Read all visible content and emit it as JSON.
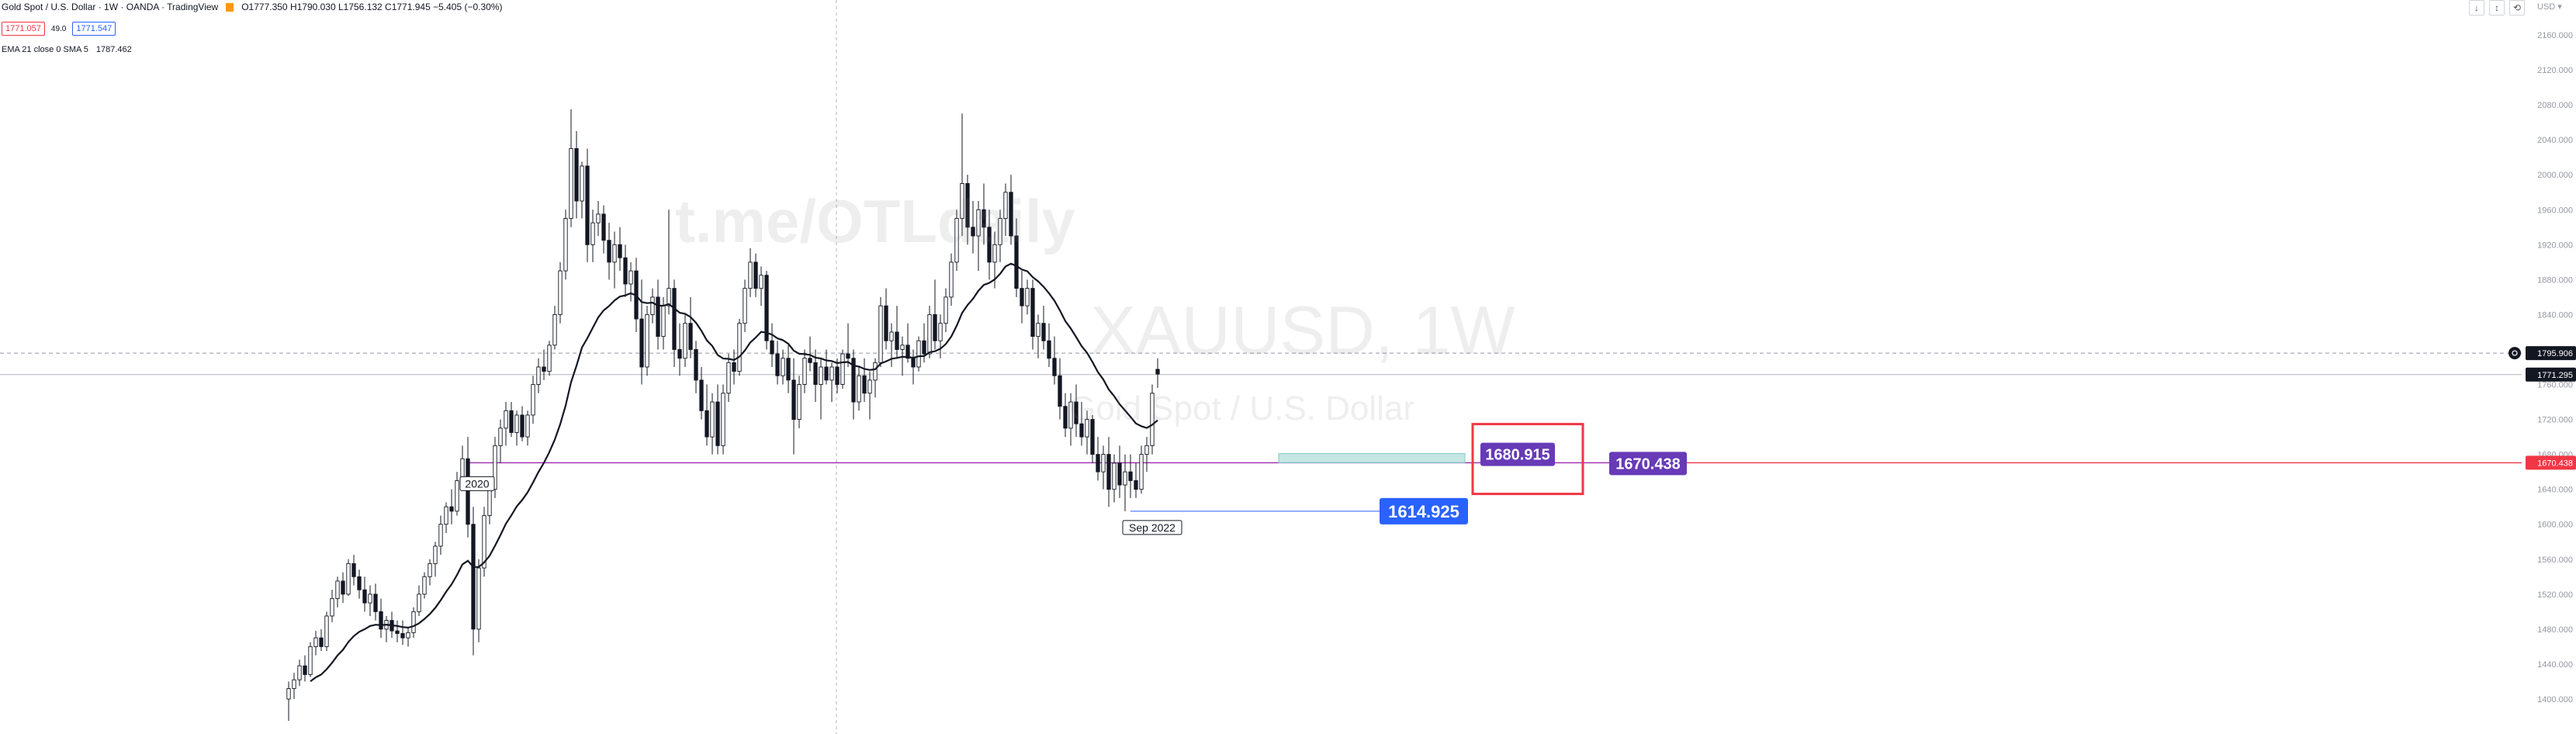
{
  "header": {
    "symbol": "Gold Spot / U.S. Dollar · 1W · OANDA · TradingView",
    "ohlc": "O1777.350  H1790.030  L1756.132  C1771.945  −5.405 (−0.30%)",
    "sell_price": "1771.057",
    "spread": "49.0",
    "buy_price": "1771.547",
    "indicator": "EMA 21 close 0 SMA 5",
    "indicator_value": "1787.462"
  },
  "watermark": {
    "line1": "t.me/OTLdaily",
    "line2": "XAUUSD, 1W",
    "line3": "Gold Spot / U.S. Dollar"
  },
  "currency_label": "USD ▾",
  "window_controls": [
    "↓",
    "↕",
    "⟲"
  ],
  "chart_data": {
    "type": "candlestick",
    "symbol": "XAUUSD",
    "timeframe": "1W",
    "y_axis": {
      "min": 1360,
      "max": 2200,
      "ticks": [
        2160,
        2120,
        2080,
        2040,
        2000,
        1960,
        1920,
        1880,
        1840,
        1800,
        1760,
        1720,
        1680,
        1640,
        1600,
        1560,
        1520,
        1480,
        1440,
        1400
      ],
      "tick_format": "000"
    },
    "price_tags": [
      {
        "label": "1795.906",
        "value": 1795.906,
        "color": "#131722"
      },
      {
        "label": "1771.295",
        "value": 1771.295,
        "color": "#131722"
      },
      {
        "label": "1670.438",
        "value": 1670.438,
        "color": "#f23645"
      }
    ],
    "horizontal_lines": [
      {
        "value": 1795.906,
        "style": "dashed",
        "color": "#9598a1"
      },
      {
        "value": 1771.295,
        "style": "solid",
        "color": "#b2b5be"
      },
      {
        "value": 1670.438,
        "style": "solid",
        "color": "#f23645"
      },
      {
        "value": 1670.438,
        "style": "solid",
        "color": "#9c27b0"
      }
    ],
    "annotations": [
      {
        "label": "2020",
        "style": "outline",
        "value": 1670.438
      },
      {
        "label": "Sep 2022",
        "style": "outline",
        "value": 1614.925
      },
      {
        "label": "1680.915",
        "style": "purple",
        "value": 1680.915
      },
      {
        "label": "1670.438",
        "style": "purple",
        "value": 1670.438
      },
      {
        "label": "1614.925",
        "style": "blue",
        "value": 1614.925
      }
    ],
    "zone": {
      "from": 1670.438,
      "to": 1680.915,
      "color": "#b2dfdb"
    },
    "ema_period": 21,
    "ema_value": 1787.462,
    "candles": [
      [
        1400,
        1420,
        1375,
        1412
      ],
      [
        1412,
        1430,
        1400,
        1422
      ],
      [
        1422,
        1445,
        1415,
        1438
      ],
      [
        1438,
        1450,
        1420,
        1428
      ],
      [
        1428,
        1465,
        1425,
        1460
      ],
      [
        1460,
        1478,
        1450,
        1470
      ],
      [
        1470,
        1480,
        1455,
        1460
      ],
      [
        1460,
        1500,
        1455,
        1495
      ],
      [
        1495,
        1525,
        1488,
        1515
      ],
      [
        1515,
        1540,
        1505,
        1535
      ],
      [
        1535,
        1545,
        1510,
        1520
      ],
      [
        1520,
        1560,
        1518,
        1555
      ],
      [
        1555,
        1565,
        1530,
        1540
      ],
      [
        1540,
        1548,
        1515,
        1525
      ],
      [
        1525,
        1540,
        1500,
        1510
      ],
      [
        1510,
        1530,
        1495,
        1520
      ],
      [
        1520,
        1532,
        1490,
        1500
      ],
      [
        1500,
        1515,
        1470,
        1480
      ],
      [
        1480,
        1495,
        1465,
        1490
      ],
      [
        1490,
        1500,
        1470,
        1478
      ],
      [
        1478,
        1490,
        1465,
        1475
      ],
      [
        1475,
        1490,
        1462,
        1470
      ],
      [
        1470,
        1482,
        1460,
        1476
      ],
      [
        1476,
        1505,
        1470,
        1500
      ],
      [
        1500,
        1530,
        1495,
        1520
      ],
      [
        1520,
        1545,
        1515,
        1540
      ],
      [
        1540,
        1560,
        1530,
        1555
      ],
      [
        1555,
        1580,
        1540,
        1575
      ],
      [
        1575,
        1610,
        1565,
        1600
      ],
      [
        1600,
        1625,
        1590,
        1620
      ],
      [
        1620,
        1640,
        1600,
        1615
      ],
      [
        1615,
        1660,
        1610,
        1650
      ],
      [
        1650,
        1690,
        1640,
        1675
      ],
      [
        1675,
        1700,
        1585,
        1600
      ],
      [
        1600,
        1620,
        1450,
        1480
      ],
      [
        1480,
        1560,
        1465,
        1550
      ],
      [
        1550,
        1620,
        1540,
        1610
      ],
      [
        1610,
        1650,
        1600,
        1640
      ],
      [
        1640,
        1700,
        1630,
        1690
      ],
      [
        1690,
        1720,
        1670,
        1710
      ],
      [
        1710,
        1740,
        1690,
        1730
      ],
      [
        1730,
        1740,
        1700,
        1705
      ],
      [
        1705,
        1730,
        1690,
        1725
      ],
      [
        1725,
        1735,
        1695,
        1700
      ],
      [
        1700,
        1730,
        1690,
        1725
      ],
      [
        1725,
        1770,
        1715,
        1760
      ],
      [
        1760,
        1790,
        1750,
        1780
      ],
      [
        1780,
        1800,
        1765,
        1775
      ],
      [
        1775,
        1810,
        1770,
        1805
      ],
      [
        1805,
        1850,
        1800,
        1840
      ],
      [
        1840,
        1900,
        1830,
        1890
      ],
      [
        1890,
        1960,
        1880,
        1950
      ],
      [
        1950,
        2075,
        1940,
        2030
      ],
      [
        2030,
        2050,
        1950,
        1970
      ],
      [
        1970,
        2015,
        1950,
        2010
      ],
      [
        2010,
        2030,
        1900,
        1920
      ],
      [
        1920,
        1960,
        1900,
        1945
      ],
      [
        1945,
        1970,
        1930,
        1955
      ],
      [
        1955,
        1965,
        1910,
        1925
      ],
      [
        1925,
        1945,
        1880,
        1900
      ],
      [
        1900,
        1935,
        1870,
        1920
      ],
      [
        1920,
        1940,
        1890,
        1905
      ],
      [
        1905,
        1920,
        1860,
        1875
      ],
      [
        1875,
        1900,
        1855,
        1890
      ],
      [
        1890,
        1905,
        1820,
        1835
      ],
      [
        1835,
        1880,
        1760,
        1780
      ],
      [
        1780,
        1850,
        1770,
        1840
      ],
      [
        1840,
        1870,
        1830,
        1860
      ],
      [
        1860,
        1880,
        1800,
        1815
      ],
      [
        1815,
        1860,
        1800,
        1850
      ],
      [
        1850,
        1960,
        1840,
        1870
      ],
      [
        1870,
        1880,
        1780,
        1800
      ],
      [
        1800,
        1830,
        1770,
        1790
      ],
      [
        1790,
        1840,
        1780,
        1830
      ],
      [
        1830,
        1860,
        1790,
        1800
      ],
      [
        1800,
        1810,
        1750,
        1765
      ],
      [
        1765,
        1780,
        1720,
        1730
      ],
      [
        1730,
        1760,
        1690,
        1700
      ],
      [
        1700,
        1750,
        1680,
        1740
      ],
      [
        1740,
        1760,
        1680,
        1690
      ],
      [
        1690,
        1760,
        1680,
        1750
      ],
      [
        1750,
        1795,
        1740,
        1785
      ],
      [
        1785,
        1800,
        1760,
        1775
      ],
      [
        1775,
        1835,
        1770,
        1830
      ],
      [
        1830,
        1880,
        1820,
        1870
      ],
      [
        1870,
        1916,
        1860,
        1900
      ],
      [
        1900,
        1910,
        1860,
        1870
      ],
      [
        1870,
        1895,
        1850,
        1885
      ],
      [
        1885,
        1890,
        1800,
        1810
      ],
      [
        1810,
        1830,
        1780,
        1795
      ],
      [
        1795,
        1810,
        1760,
        1770
      ],
      [
        1770,
        1800,
        1760,
        1790
      ],
      [
        1790,
        1805,
        1750,
        1765
      ],
      [
        1765,
        1790,
        1680,
        1720
      ],
      [
        1720,
        1770,
        1710,
        1760
      ],
      [
        1760,
        1800,
        1750,
        1790
      ],
      [
        1790,
        1815,
        1775,
        1785
      ],
      [
        1785,
        1800,
        1740,
        1760
      ],
      [
        1760,
        1790,
        1720,
        1780
      ],
      [
        1780,
        1800,
        1760,
        1765
      ],
      [
        1765,
        1785,
        1740,
        1780
      ],
      [
        1780,
        1790,
        1750,
        1760
      ],
      [
        1760,
        1800,
        1755,
        1795
      ],
      [
        1795,
        1830,
        1780,
        1790
      ],
      [
        1790,
        1800,
        1720,
        1740
      ],
      [
        1740,
        1780,
        1730,
        1770
      ],
      [
        1770,
        1790,
        1740,
        1750
      ],
      [
        1750,
        1775,
        1720,
        1765
      ],
      [
        1765,
        1790,
        1745,
        1785
      ],
      [
        1785,
        1860,
        1780,
        1850
      ],
      [
        1850,
        1870,
        1800,
        1810
      ],
      [
        1810,
        1830,
        1780,
        1820
      ],
      [
        1820,
        1850,
        1790,
        1800
      ],
      [
        1800,
        1815,
        1770,
        1805
      ],
      [
        1805,
        1830,
        1785,
        1790
      ],
      [
        1790,
        1800,
        1760,
        1780
      ],
      [
        1780,
        1815,
        1775,
        1810
      ],
      [
        1810,
        1830,
        1785,
        1795
      ],
      [
        1795,
        1850,
        1790,
        1840
      ],
      [
        1840,
        1880,
        1800,
        1810
      ],
      [
        1810,
        1840,
        1790,
        1830
      ],
      [
        1830,
        1870,
        1820,
        1860
      ],
      [
        1860,
        1910,
        1850,
        1900
      ],
      [
        1900,
        1960,
        1890,
        1950
      ],
      [
        1950,
        2070,
        1930,
        1990
      ],
      [
        1990,
        2000,
        1920,
        1940
      ],
      [
        1940,
        1970,
        1910,
        1930
      ],
      [
        1930,
        1970,
        1890,
        1960
      ],
      [
        1960,
        1990,
        1920,
        1940
      ],
      [
        1940,
        1960,
        1880,
        1900
      ],
      [
        1900,
        1935,
        1870,
        1920
      ],
      [
        1920,
        1960,
        1900,
        1950
      ],
      [
        1950,
        1990,
        1930,
        1980
      ],
      [
        1980,
        2000,
        1920,
        1930
      ],
      [
        1930,
        1950,
        1860,
        1870
      ],
      [
        1870,
        1890,
        1830,
        1850
      ],
      [
        1850,
        1880,
        1840,
        1870
      ],
      [
        1870,
        1880,
        1800,
        1815
      ],
      [
        1815,
        1840,
        1790,
        1830
      ],
      [
        1830,
        1850,
        1800,
        1810
      ],
      [
        1810,
        1830,
        1780,
        1790
      ],
      [
        1790,
        1815,
        1760,
        1770
      ],
      [
        1770,
        1790,
        1720,
        1735
      ],
      [
        1735,
        1750,
        1700,
        1710
      ],
      [
        1710,
        1750,
        1690,
        1740
      ],
      [
        1740,
        1760,
        1700,
        1715
      ],
      [
        1715,
        1740,
        1690,
        1700
      ],
      [
        1700,
        1730,
        1680,
        1720
      ],
      [
        1720,
        1725,
        1670,
        1680
      ],
      [
        1680,
        1700,
        1650,
        1660
      ],
      [
        1660,
        1690,
        1640,
        1680
      ],
      [
        1680,
        1700,
        1620,
        1640
      ],
      [
        1640,
        1680,
        1625,
        1670
      ],
      [
        1670,
        1690,
        1630,
        1645
      ],
      [
        1645,
        1680,
        1614.925,
        1660
      ],
      [
        1660,
        1680,
        1630,
        1650
      ],
      [
        1650,
        1670,
        1630,
        1640
      ],
      [
        1640,
        1690,
        1635,
        1680
      ],
      [
        1680,
        1700,
        1660,
        1690
      ],
      [
        1690,
        1760,
        1680,
        1750
      ],
      [
        1777.35,
        1790.03,
        1756.132,
        1771.945
      ]
    ],
    "annotation_candle_index": {
      "2020": 33,
      "Sep 2022": 155
    }
  }
}
